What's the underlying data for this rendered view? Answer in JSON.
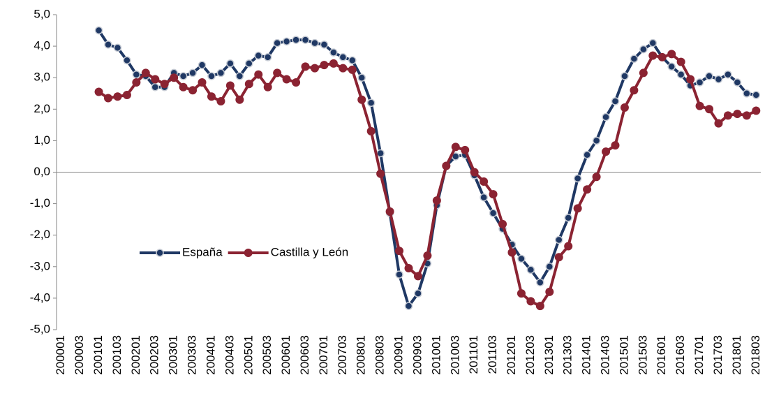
{
  "chart_data": {
    "type": "line",
    "categories": [
      "200001",
      null,
      "200003",
      null,
      "200101",
      null,
      "200103",
      null,
      "200201",
      null,
      "200203",
      null,
      "200301",
      null,
      "200303",
      null,
      "200401",
      null,
      "200403",
      null,
      "200501",
      null,
      "200503",
      null,
      "200601",
      null,
      "200603",
      null,
      "200701",
      null,
      "200703",
      null,
      "200801",
      null,
      "200803",
      null,
      "200901",
      null,
      "200903",
      null,
      "201001",
      null,
      "201003",
      null,
      "201101",
      null,
      "201103",
      null,
      "201201",
      null,
      "201203",
      null,
      "201301",
      null,
      "201303",
      null,
      "201401",
      null,
      "201403",
      null,
      "201501",
      null,
      "201503",
      null,
      "201601",
      null,
      "201603",
      null,
      "201701",
      null,
      "201703",
      null,
      "201801",
      null,
      "201803"
    ],
    "series": [
      {
        "name": "España",
        "color": "#1f3864",
        "values": [
          null,
          null,
          null,
          null,
          4.5,
          4.05,
          3.95,
          3.55,
          3.1,
          3.05,
          2.7,
          2.7,
          3.15,
          3.05,
          3.15,
          3.4,
          3.05,
          3.15,
          3.45,
          3.05,
          3.45,
          3.7,
          3.65,
          4.1,
          4.15,
          4.2,
          4.2,
          4.1,
          4.05,
          3.8,
          3.65,
          3.55,
          3.0,
          2.2,
          0.6,
          -1.3,
          -3.25,
          -4.25,
          -3.85,
          -2.9,
          -1.05,
          0.2,
          0.5,
          0.55,
          -0.1,
          -0.8,
          -1.3,
          -1.8,
          -2.3,
          -2.75,
          -3.1,
          -3.5,
          -3.0,
          -2.15,
          -1.45,
          -0.2,
          0.55,
          1.0,
          1.75,
          2.25,
          3.05,
          3.6,
          3.9,
          4.1,
          3.65,
          3.35,
          3.1,
          2.75,
          2.85,
          3.05,
          2.95,
          3.1,
          2.85,
          2.5,
          2.45
        ]
      },
      {
        "name": "Castilla y León",
        "color": "#8b2332",
        "values": [
          null,
          null,
          null,
          null,
          2.55,
          2.35,
          2.4,
          2.45,
          2.85,
          3.15,
          2.95,
          2.8,
          3.0,
          2.7,
          2.6,
          2.85,
          2.4,
          2.25,
          2.75,
          2.3,
          2.8,
          3.1,
          2.7,
          3.15,
          2.95,
          2.85,
          3.35,
          3.3,
          3.4,
          3.45,
          3.3,
          3.25,
          2.3,
          1.3,
          -0.05,
          -1.25,
          -2.5,
          -3.05,
          -3.3,
          -2.65,
          -0.9,
          0.2,
          0.8,
          0.7,
          0.0,
          -0.3,
          -0.7,
          -1.65,
          -2.55,
          -3.85,
          -4.1,
          -4.25,
          -3.8,
          -2.7,
          -2.35,
          -1.15,
          -0.55,
          -0.15,
          0.65,
          0.85,
          2.05,
          2.6,
          3.15,
          3.7,
          3.65,
          3.75,
          3.5,
          2.95,
          2.1,
          2.0,
          1.55,
          1.8,
          1.85,
          1.8,
          1.95
        ]
      }
    ],
    "ylim": [
      -5,
      5
    ],
    "yticks": [
      {
        "value": -5,
        "label": "-5,0"
      },
      {
        "value": -4,
        "label": "-4,0"
      },
      {
        "value": -3,
        "label": "-3,0"
      },
      {
        "value": -2,
        "label": "-2,0"
      },
      {
        "value": -1,
        "label": "-1,0"
      },
      {
        "value": 0,
        "label": "0,0"
      },
      {
        "value": 1,
        "label": "1,0"
      },
      {
        "value": 2,
        "label": "2,0"
      },
      {
        "value": 3,
        "label": "3,0"
      },
      {
        "value": 4,
        "label": "4,0"
      },
      {
        "value": 5,
        "label": "5,0"
      }
    ],
    "legend_position": "left"
  }
}
